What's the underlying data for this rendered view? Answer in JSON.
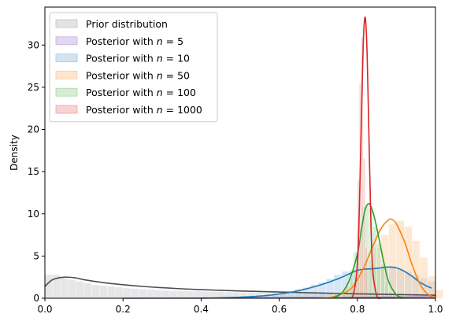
{
  "chart_data": {
    "type": "histogram-kde",
    "xlabel": "",
    "ylabel": "Density",
    "xlim": [
      0,
      1
    ],
    "ylim": [
      0,
      34.5
    ],
    "x_ticks": [
      "0.0",
      "0.2",
      "0.4",
      "0.6",
      "0.8",
      "1.0"
    ],
    "y_ticks": [
      "0",
      "5",
      "10",
      "15",
      "20",
      "25",
      "30"
    ],
    "legend_position": "upper-left",
    "series": [
      {
        "name": "Prior distribution",
        "color": "#c8c8c8",
        "line_color": "#4d4d4d",
        "histogram": {
          "bin_width": 0.02,
          "start": 0.0,
          "heights": [
            2.8,
            2.8,
            2.4,
            2.2,
            2.0,
            1.8,
            1.6,
            1.5,
            1.4,
            1.3,
            1.2,
            1.15,
            1.1,
            1.05,
            1.0,
            0.95,
            0.9,
            0.88,
            0.85,
            0.82,
            0.8,
            0.78,
            0.76,
            0.74,
            0.72,
            0.7,
            0.68,
            0.66,
            0.64,
            0.62,
            0.6,
            0.58,
            0.56,
            0.55,
            0.54,
            0.52,
            0.5,
            0.5,
            0.48,
            0.46,
            0.45,
            0.44,
            0.43,
            0.42,
            0.41,
            0.4,
            0.4,
            0.42,
            0.45,
            0.5
          ]
        },
        "kde": {
          "x": [
            0.0,
            0.02,
            0.05,
            0.08,
            0.1,
            0.15,
            0.2,
            0.25,
            0.3,
            0.35,
            0.4,
            0.45,
            0.5,
            0.55,
            0.6,
            0.65,
            0.7,
            0.75,
            0.8,
            0.85,
            0.9,
            0.95,
            1.0
          ],
          "y": [
            1.4,
            2.2,
            2.5,
            2.4,
            2.2,
            1.85,
            1.6,
            1.4,
            1.25,
            1.12,
            1.02,
            0.94,
            0.86,
            0.8,
            0.74,
            0.68,
            0.62,
            0.57,
            0.52,
            0.48,
            0.44,
            0.4,
            0.36
          ]
        }
      },
      {
        "name": "Posterior with $n = 5$",
        "label_prefix": "Posterior with ",
        "label_n": "n",
        "label_value": " = 5",
        "color": "#c5b0e2",
        "line_color": "#9467bd",
        "histogram": null,
        "kde": {
          "x": [
            0.2,
            0.4,
            0.6,
            0.8,
            1.0
          ],
          "y": [
            0.0,
            0.02,
            0.05,
            0.1,
            0.15
          ]
        }
      },
      {
        "name": "Posterior with $n = 10$",
        "label_prefix": "Posterior with ",
        "label_n": "n",
        "label_value": " = 10",
        "color": "#a6c8e6",
        "line_color": "#1f77b4",
        "histogram": {
          "bin_width": 0.02,
          "start": 0.4,
          "heights": [
            0.1,
            0.1,
            0.15,
            0.2,
            0.25,
            0.3,
            0.35,
            0.4,
            0.5,
            0.6,
            0.7,
            0.9,
            1.1,
            1.3,
            1.6,
            1.9,
            2.3,
            2.8,
            3.2,
            3.4,
            3.5,
            3.6,
            3.6,
            3.7,
            3.8,
            3.5,
            3.2,
            2.8,
            2.4,
            2.0
          ]
        },
        "kde": {
          "x": [
            0.4,
            0.45,
            0.5,
            0.55,
            0.6,
            0.65,
            0.7,
            0.75,
            0.78,
            0.8,
            0.82,
            0.84,
            0.86,
            0.88,
            0.9,
            0.92,
            0.94,
            0.96,
            0.98,
            0.99
          ],
          "y": [
            0.02,
            0.05,
            0.12,
            0.25,
            0.5,
            0.9,
            1.5,
            2.3,
            2.9,
            3.3,
            3.45,
            3.5,
            3.6,
            3.7,
            3.6,
            3.2,
            2.6,
            1.9,
            1.4,
            1.2
          ]
        }
      },
      {
        "name": "Posterior with $n = 50$",
        "label_prefix": "Posterior with ",
        "label_n": "n",
        "label_value": " = 50",
        "color": "#ffcc99",
        "line_color": "#ff7f0e",
        "histogram": {
          "bin_width": 0.02,
          "start": 0.72,
          "heights": [
            0.2,
            0.5,
            1.0,
            2.0,
            3.2,
            4.5,
            6.0,
            7.5,
            8.8,
            9.2,
            8.5,
            6.8,
            4.8,
            2.6,
            1.0
          ]
        },
        "kde": {
          "x": [
            0.7,
            0.74,
            0.78,
            0.8,
            0.82,
            0.84,
            0.86,
            0.88,
            0.89,
            0.9,
            0.92,
            0.94,
            0.96,
            0.98,
            1.0
          ],
          "y": [
            0.02,
            0.2,
            1.0,
            2.2,
            4.0,
            6.2,
            8.2,
            9.3,
            9.3,
            8.8,
            6.8,
            4.0,
            1.7,
            0.5,
            0.1
          ]
        }
      },
      {
        "name": "Posterior with $n = 100$",
        "label_prefix": "Posterior with ",
        "label_n": "n",
        "label_value": " = 100",
        "color": "#a9dba9",
        "line_color": "#2ca02c",
        "histogram": {
          "bin_width": 0.01,
          "start": 0.76,
          "heights": [
            0.6,
            1.5,
            3.0,
            5.5,
            8.3,
            10.8,
            11.0,
            10.5,
            8.5,
            6.5,
            4.0,
            2.0,
            0.8
          ]
        },
        "kde": {
          "x": [
            0.74,
            0.76,
            0.78,
            0.8,
            0.81,
            0.82,
            0.83,
            0.84,
            0.85,
            0.86,
            0.87,
            0.88,
            0.9,
            0.92
          ],
          "y": [
            0.1,
            0.6,
            2.2,
            5.2,
            8.0,
            10.5,
            11.2,
            10.2,
            8.3,
            6.0,
            3.8,
            2.0,
            0.4,
            0.05
          ]
        }
      },
      {
        "name": "Posterior with $n = 1000$",
        "label_prefix": "Posterior with ",
        "label_n": "n",
        "label_value": " = 1000",
        "color": "#f4a6a6",
        "line_color": "#d62728",
        "histogram": {
          "bin_width": 0.005,
          "start": 0.795,
          "heights": [
            3.5,
            14.0,
            25.5,
            31.0,
            16.5,
            6.0
          ]
        },
        "kde": {
          "x": [
            0.78,
            0.79,
            0.8,
            0.805,
            0.81,
            0.815,
            0.82,
            0.825,
            0.83,
            0.835,
            0.84,
            0.85,
            0.86
          ],
          "y": [
            0.0,
            0.5,
            4.0,
            10.5,
            20.5,
            30.0,
            33.3,
            29.0,
            18.5,
            8.5,
            3.0,
            0.3,
            0.0
          ]
        }
      }
    ]
  }
}
